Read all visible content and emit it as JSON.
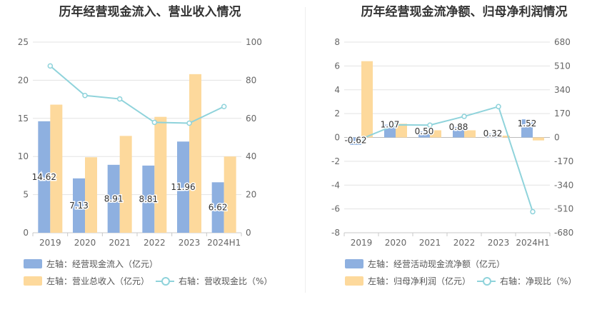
{
  "colors": {
    "bar_blue": "#8eb0e0",
    "bar_orange": "#fdd99c",
    "line": "#8fd3db",
    "axis_text": "#666666",
    "grid": "#e3e3e3"
  },
  "chart_data": [
    {
      "type": "bar",
      "title": "历年经营现金流入、营业收入情况",
      "categories": [
        "2019",
        "2020",
        "2021",
        "2022",
        "2023",
        "2024H1"
      ],
      "left_axis": {
        "ylim": [
          0,
          25
        ],
        "ticks": [
          "0",
          "5",
          "10",
          "15",
          "20",
          "25"
        ]
      },
      "right_axis": {
        "ylim": [
          0,
          100
        ],
        "ticks": [
          "0",
          "20",
          "40",
          "60",
          "80",
          "100"
        ]
      },
      "series": [
        {
          "name": "左轴：经营现金流入（亿元）",
          "axis": "left",
          "type": "bar",
          "values": [
            14.62,
            7.13,
            8.91,
            8.81,
            11.96,
            6.62
          ],
          "labels": [
            "14.62",
            "7.13",
            "8.91",
            "8.81",
            "11.96",
            "6.62"
          ]
        },
        {
          "name": "左轴：营业总收入（亿元）",
          "axis": "left",
          "type": "bar",
          "values": [
            16.8,
            9.9,
            12.7,
            15.2,
            20.8,
            10.0
          ]
        },
        {
          "name": "右轴：营收现金比（%）",
          "axis": "right",
          "type": "line",
          "values": [
            87.5,
            72.0,
            70.2,
            57.9,
            57.5,
            66.2
          ]
        }
      ],
      "legend": [
        "左轴：经营现金流入（亿元）",
        "左轴：营业总收入（亿元）",
        "右轴：营收现金比（%）"
      ]
    },
    {
      "type": "bar",
      "title": "历年经营现金流净额、归母净利润情况",
      "categories": [
        "2019",
        "2020",
        "2021",
        "2022",
        "2023",
        "2024H1"
      ],
      "left_axis": {
        "ylim": [
          -8,
          8
        ],
        "ticks": [
          "-8",
          "-6",
          "-4",
          "-2",
          "0",
          "2",
          "4",
          "6",
          "8"
        ]
      },
      "right_axis": {
        "ylim": [
          -680,
          680
        ],
        "ticks": [
          "-680",
          "-510",
          "-340",
          "-170",
          "0",
          "170",
          "340",
          "510",
          "680"
        ]
      },
      "series": [
        {
          "name": "左轴：经营活动现金流净额（亿元）",
          "axis": "left",
          "type": "bar",
          "values": [
            -0.62,
            1.07,
            0.5,
            0.88,
            0.32,
            1.52
          ],
          "labels": [
            "-0.62",
            "1.07",
            "0.50",
            "0.88",
            "0.32",
            "1.52"
          ]
        },
        {
          "name": "左轴：归母净利润（亿元）",
          "axis": "left",
          "type": "bar",
          "values": [
            6.4,
            1.15,
            0.6,
            0.6,
            0.15,
            -0.25
          ]
        },
        {
          "name": "右轴：净现比（%）",
          "axis": "right",
          "type": "line",
          "values": [
            -10,
            90,
            88,
            150,
            220,
            -530
          ]
        }
      ],
      "legend": [
        "左轴：经营活动现金流净额（亿元）",
        "左轴：归母净利润（亿元）",
        "右轴：净现比（%）"
      ]
    }
  ]
}
